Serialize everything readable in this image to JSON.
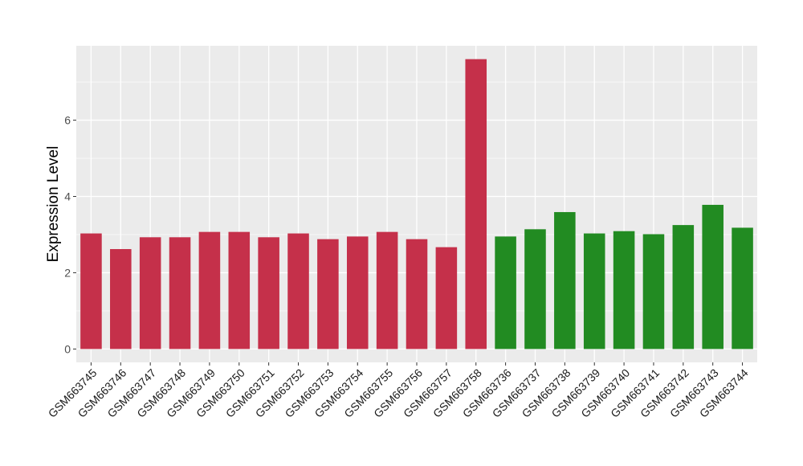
{
  "chart_data": {
    "type": "bar",
    "ylabel": "Expression Level",
    "xlabel": "",
    "ylim": [
      -0.35,
      7.95
    ],
    "yticks": [
      0,
      2,
      4,
      6
    ],
    "grid": true,
    "categories": [
      "GSM663745",
      "GSM663746",
      "GSM663747",
      "GSM663748",
      "GSM663749",
      "GSM663750",
      "GSM663751",
      "GSM663752",
      "GSM663753",
      "GSM663754",
      "GSM663755",
      "GSM663756",
      "GSM663757",
      "GSM663758",
      "GSM663736",
      "GSM663737",
      "GSM663738",
      "GSM663739",
      "GSM663740",
      "GSM663741",
      "GSM663742",
      "GSM663743",
      "GSM663744"
    ],
    "values": [
      3.03,
      2.62,
      2.93,
      2.93,
      3.07,
      3.07,
      2.93,
      3.03,
      2.88,
      2.95,
      3.07,
      2.88,
      2.67,
      7.6,
      2.95,
      3.14,
      3.59,
      3.03,
      3.09,
      3.01,
      3.25,
      3.78,
      3.18
    ],
    "bar_colors": [
      "#c5304a",
      "#c5304a",
      "#c5304a",
      "#c5304a",
      "#c5304a",
      "#c5304a",
      "#c5304a",
      "#c5304a",
      "#c5304a",
      "#c5304a",
      "#c5304a",
      "#c5304a",
      "#c5304a",
      "#c5304a",
      "#228b22",
      "#228b22",
      "#228b22",
      "#228b22",
      "#228b22",
      "#228b22",
      "#228b22",
      "#228b22",
      "#228b22"
    ],
    "panel_color": "#ebebeb",
    "grid_color": "#ffffff"
  }
}
